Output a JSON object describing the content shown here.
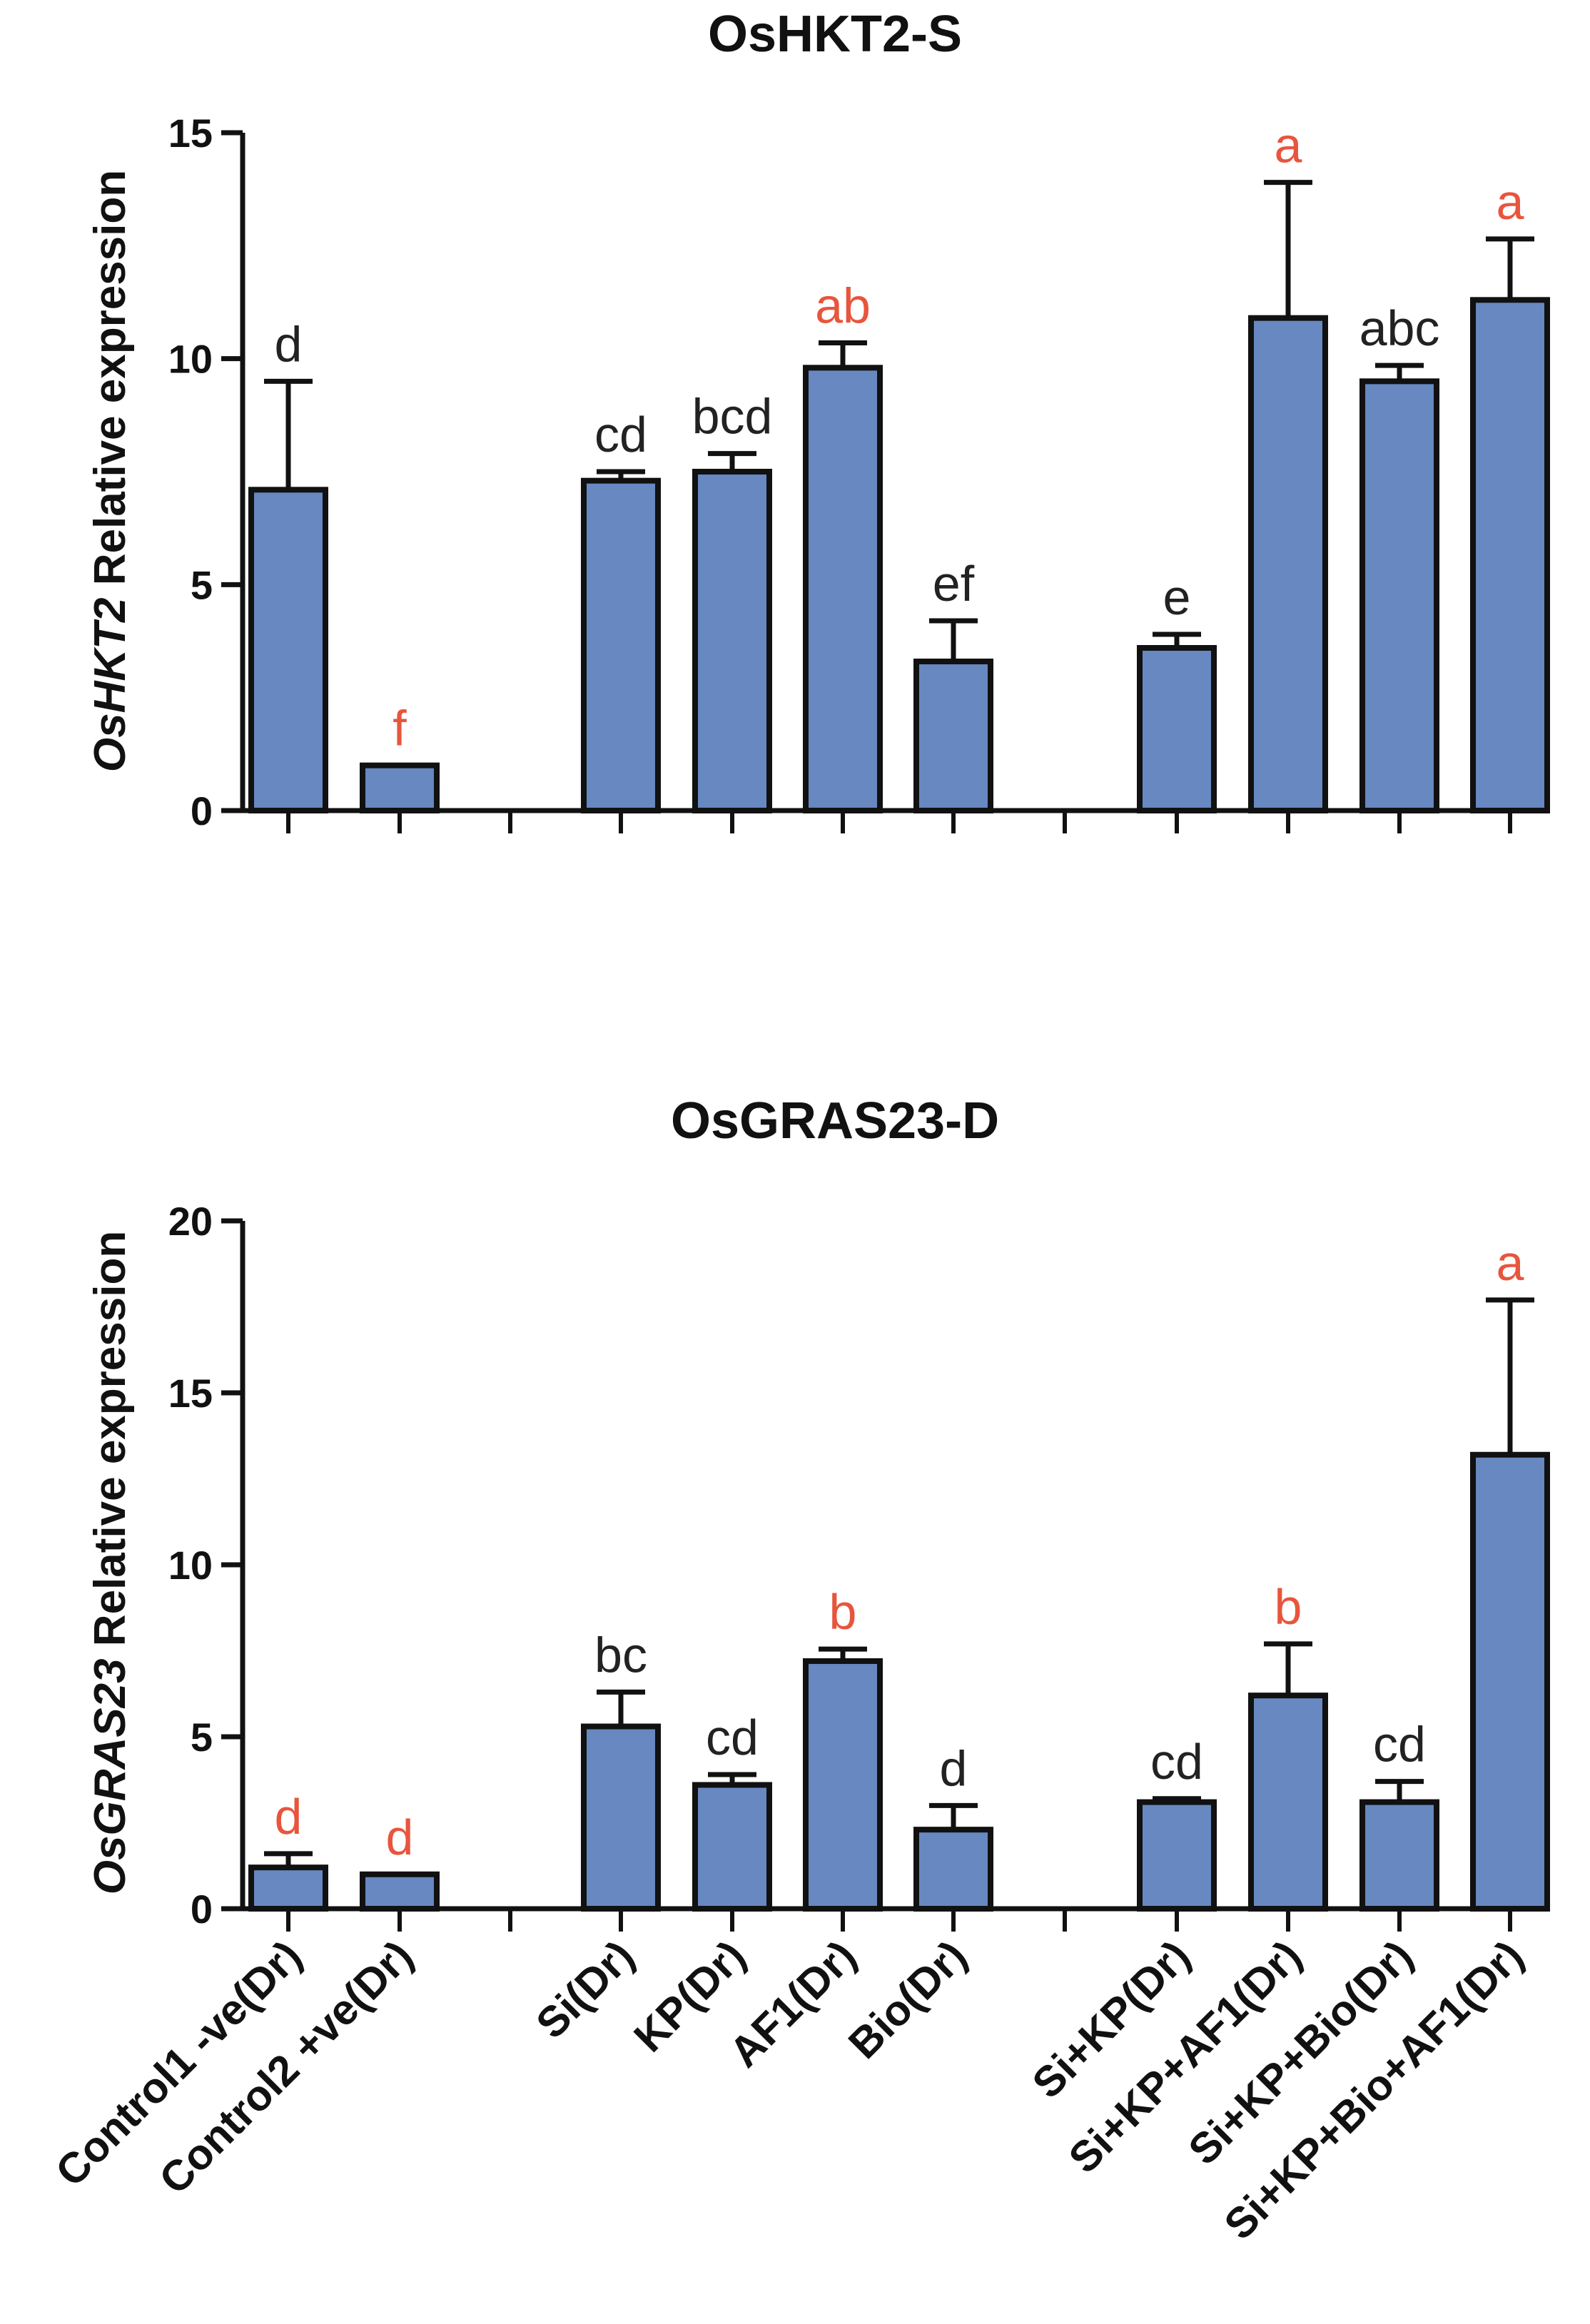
{
  "colors": {
    "bar_fill": "#6788c0",
    "bar_stroke": "#111111",
    "axis": "#111111",
    "letter_black": "#222222",
    "letter_red": "#e8553d"
  },
  "categories": [
    "Control1 -ve(Dr)",
    "Control2 +ve(Dr)",
    "Si(Dr)",
    "KP(Dr)",
    "AF1(Dr)",
    "Bio(Dr)",
    "Si+KP(Dr)",
    "Si+KP+AF1(Dr)",
    "Si+KP+Bio(Dr)",
    "Si+KP+Bio+AF1(Dr)"
  ],
  "chart_data": [
    {
      "type": "bar",
      "title": "OsHKT2-S",
      "ylabel_gene": "OsHKT2",
      "ylabel_rest": " Relative expression",
      "ylim": [
        0,
        15
      ],
      "yticks": [
        "0",
        "5",
        "10",
        "15"
      ],
      "ytick_values": [
        0,
        5,
        10,
        15
      ],
      "values": [
        7.1,
        1.0,
        7.3,
        7.5,
        9.8,
        3.3,
        3.6,
        10.9,
        9.5,
        11.3
      ],
      "errors": [
        2.4,
        0.0,
        0.2,
        0.4,
        0.55,
        0.9,
        0.3,
        3.0,
        0.35,
        1.35
      ],
      "letters": [
        "d",
        "f",
        "cd",
        "bcd",
        "ab",
        "ef",
        "e",
        "a",
        "abc",
        "a"
      ],
      "letter_colors": [
        "black",
        "red",
        "black",
        "black",
        "red",
        "black",
        "black",
        "red",
        "black",
        "red"
      ]
    },
    {
      "type": "bar",
      "title": "OsGRAS23-D",
      "ylabel_gene": "OsGRAS23",
      "ylabel_rest": " Relative expression",
      "ylim": [
        0,
        20
      ],
      "yticks": [
        "0",
        "5",
        "10",
        "15",
        "20"
      ],
      "ytick_values": [
        0,
        5,
        10,
        15,
        20
      ],
      "values": [
        1.2,
        1.0,
        5.3,
        3.6,
        7.2,
        2.3,
        3.1,
        6.2,
        3.1,
        13.2
      ],
      "errors": [
        0.4,
        0.0,
        1.0,
        0.3,
        0.35,
        0.7,
        0.1,
        1.5,
        0.6,
        4.5
      ],
      "letters": [
        "d",
        "d",
        "bc",
        "cd",
        "b",
        "d",
        "cd",
        "b",
        "cd",
        "a"
      ],
      "letter_colors": [
        "red",
        "red",
        "black",
        "black",
        "red",
        "black",
        "black",
        "red",
        "black",
        "red"
      ]
    }
  ]
}
